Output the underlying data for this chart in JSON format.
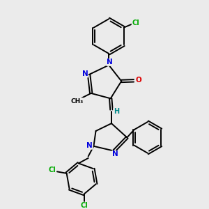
{
  "bg_color": "#ebebeb",
  "bond_color": "#000000",
  "bond_width": 1.4,
  "atom_colors": {
    "N": "#0000dd",
    "O": "#dd0000",
    "Cl": "#00aa00",
    "C": "#000000",
    "H": "#008888"
  }
}
